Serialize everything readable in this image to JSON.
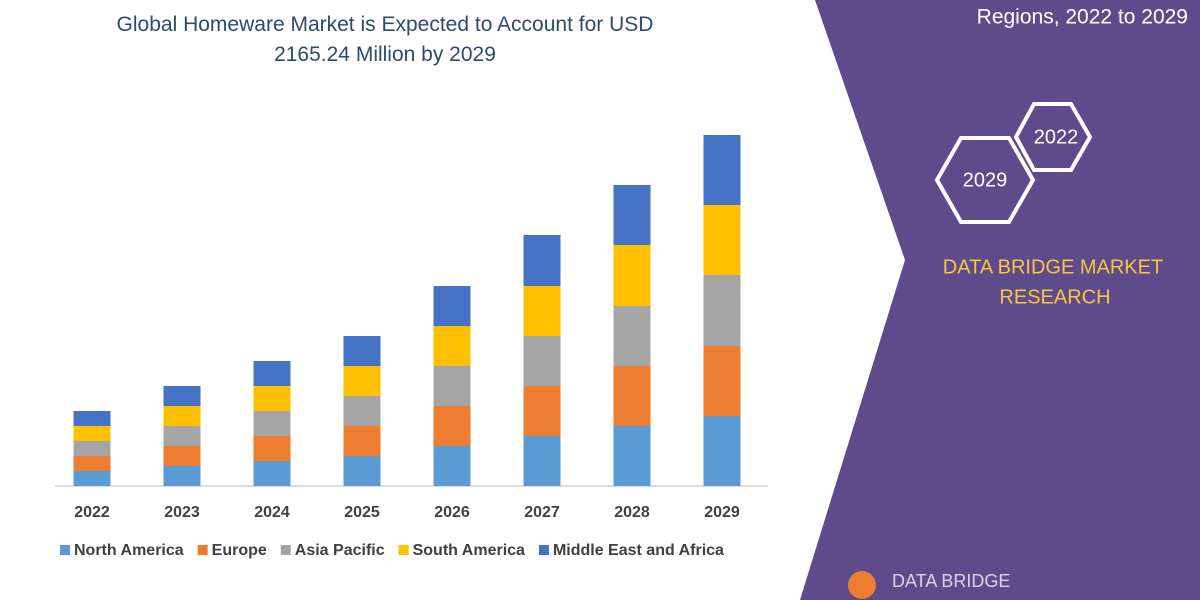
{
  "chart_data": {
    "type": "stacked_bar",
    "title": "Global Homeware Market is Expected to Account for USD 2165.24 Million by 2029",
    "categories": [
      "2022",
      "2023",
      "2024",
      "2025",
      "2026",
      "2027",
      "2028",
      "2029"
    ],
    "series": [
      {
        "name": "North America",
        "color": "#5b9bd5",
        "values": [
          15,
          20,
          25,
          30,
          40,
          50,
          60,
          70
        ]
      },
      {
        "name": "Europe",
        "color": "#ed7d31",
        "values": [
          15,
          20,
          25,
          30,
          40,
          50,
          60,
          70
        ]
      },
      {
        "name": "Asia Pacific",
        "color": "#a5a5a5",
        "values": [
          15,
          20,
          25,
          30,
          40,
          50,
          60,
          71
        ]
      },
      {
        "name": "South America",
        "color": "#ffc000",
        "values": [
          15,
          20,
          25,
          30,
          40,
          50,
          61,
          70
        ]
      },
      {
        "name": "Middle East and Africa",
        "color": "#4472c4",
        "values": [
          15,
          20,
          25,
          30,
          40,
          51,
          60,
          70
        ]
      }
    ]
  },
  "panel": {
    "subtitle": "Regions, 2022 to 2029",
    "hex_labels": [
      "2022",
      "2029"
    ],
    "brand": [
      "DATA BRIDGE MARKET",
      "RESEARCH"
    ],
    "logo": "DATA BRIDGE"
  }
}
